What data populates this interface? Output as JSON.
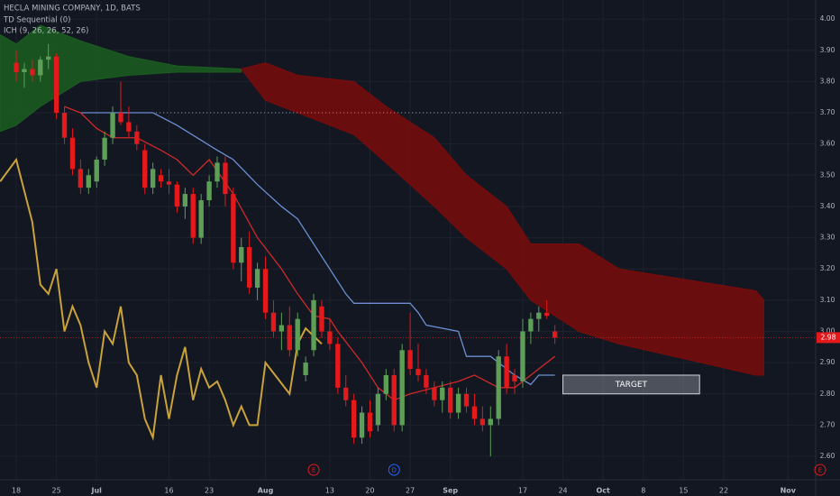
{
  "chart_data": {
    "type": "candlestick",
    "title": "HECLA MINING COMPANY, 1D, BATS",
    "indicators": [
      "TD Sequential (0)",
      "ICH (9, 26, 26, 52, 26)"
    ],
    "xlim": [
      -2.02,
      99.44
    ],
    "ylim": [
      2.525,
      4.061
    ],
    "yticks": [
      {
        "value": 4,
        "label": "4.00"
      },
      {
        "value": 3.9,
        "label": "3.90"
      },
      {
        "value": 3.8,
        "label": "3.80"
      },
      {
        "value": 3.7,
        "label": "3.70"
      },
      {
        "value": 3.6,
        "label": "3.60"
      },
      {
        "value": 3.5,
        "label": "3.50"
      },
      {
        "value": 3.4,
        "label": "3.40"
      },
      {
        "value": 3.3,
        "label": "3.30"
      },
      {
        "value": 3.2,
        "label": "3.20"
      },
      {
        "value": 3.1,
        "label": "3.10"
      },
      {
        "value": 3,
        "label": "3.00"
      },
      {
        "value": 2.9,
        "label": "2.90"
      },
      {
        "value": 2.8,
        "label": "2.80"
      },
      {
        "value": 2.7,
        "label": "2.70"
      },
      {
        "value": 2.6,
        "label": "2.60"
      }
    ],
    "xticks": [
      {
        "value": 0,
        "label": "18"
      },
      {
        "value": 5,
        "label": "25"
      },
      {
        "value": 10,
        "label": "Jul"
      },
      {
        "value": 19,
        "label": "16"
      },
      {
        "value": 24,
        "label": "23"
      },
      {
        "value": 31,
        "label": "Aug"
      },
      {
        "value": 39,
        "label": "13"
      },
      {
        "value": 44,
        "label": "20"
      },
      {
        "value": 49,
        "label": "27"
      },
      {
        "value": 54,
        "label": "Sep"
      },
      {
        "value": 63,
        "label": "17"
      },
      {
        "value": 68,
        "label": "24"
      },
      {
        "value": 73,
        "label": "Oct"
      },
      {
        "value": 78,
        "label": "8"
      },
      {
        "value": 83,
        "label": "15"
      },
      {
        "value": 88,
        "label": "22"
      },
      {
        "value": 96,
        "label": "Nov"
      }
    ],
    "grid": true,
    "up_color": "#5e9f58",
    "down_color": "#e3191c",
    "x": [
      0,
      1,
      2,
      3,
      4,
      5,
      6,
      7,
      8,
      9,
      10,
      11,
      12,
      13,
      14,
      15,
      16,
      17,
      18,
      19,
      20,
      21,
      22,
      23,
      24,
      25,
      26,
      27,
      28,
      29,
      30,
      31,
      32,
      33,
      34,
      35,
      36,
      37,
      38,
      39,
      40,
      41,
      42,
      43,
      44,
      45,
      46,
      47,
      48,
      49,
      50,
      51,
      52,
      53,
      54,
      55,
      56,
      57,
      58,
      59,
      60,
      61,
      62,
      63,
      64,
      65,
      66,
      67
    ],
    "open": [
      3.86,
      3.83,
      3.84,
      3.82,
      3.87,
      3.88,
      3.7,
      3.62,
      3.52,
      3.46,
      3.48,
      3.55,
      3.62,
      3.7,
      3.67,
      3.64,
      3.58,
      3.46,
      3.5,
      3.48,
      3.47,
      3.4,
      3.44,
      3.3,
      3.42,
      3.48,
      3.54,
      3.44,
      3.22,
      3.27,
      3.14,
      3.2,
      3.06,
      3.0,
      3.02,
      2.94,
      2.86,
      2.94,
      3.08,
      3.0,
      2.96,
      2.82,
      2.78,
      2.66,
      2.74,
      2.7,
      2.8,
      2.86,
      2.7,
      2.94,
      2.88,
      2.86,
      2.82,
      2.78,
      2.82,
      2.74,
      2.8,
      2.76,
      2.72,
      2.7,
      2.72,
      2.92,
      2.86,
      2.84,
      3.0,
      3.04,
      3.06,
      3.0
    ],
    "high": [
      3.9,
      3.86,
      3.87,
      3.88,
      3.92,
      3.89,
      3.72,
      3.65,
      3.55,
      3.52,
      3.56,
      3.64,
      3.72,
      3.8,
      3.72,
      3.66,
      3.6,
      3.54,
      3.52,
      3.52,
      3.48,
      3.46,
      3.46,
      3.44,
      3.5,
      3.56,
      3.56,
      3.46,
      3.3,
      3.32,
      3.22,
      3.24,
      3.1,
      3.06,
      3.08,
      3.06,
      2.92,
      3.12,
      3.1,
      3.04,
      2.98,
      2.86,
      2.8,
      2.76,
      2.78,
      2.82,
      2.88,
      2.88,
      2.96,
      3.06,
      2.96,
      2.88,
      2.84,
      2.84,
      2.84,
      2.82,
      2.82,
      2.8,
      2.76,
      2.76,
      2.94,
      2.96,
      2.88,
      3.04,
      3.06,
      3.08,
      3.1,
      3.02
    ],
    "low": [
      3.8,
      3.78,
      3.8,
      3.8,
      3.84,
      3.68,
      3.6,
      3.5,
      3.44,
      3.44,
      3.46,
      3.53,
      3.6,
      3.66,
      3.62,
      3.58,
      3.44,
      3.44,
      3.46,
      3.44,
      3.38,
      3.36,
      3.28,
      3.28,
      3.4,
      3.46,
      3.4,
      3.2,
      3.16,
      3.12,
      3.1,
      3.04,
      2.98,
      2.94,
      2.92,
      2.92,
      2.84,
      2.92,
      2.98,
      2.94,
      2.8,
      2.76,
      2.64,
      2.64,
      2.66,
      2.68,
      2.78,
      2.68,
      2.68,
      2.86,
      2.84,
      2.8,
      2.76,
      2.74,
      2.72,
      2.72,
      2.74,
      2.7,
      2.68,
      2.6,
      2.7,
      2.8,
      2.8,
      2.82,
      2.96,
      3.0,
      3.04,
      2.96
    ],
    "close": [
      3.83,
      3.84,
      3.82,
      3.87,
      3.88,
      3.7,
      3.62,
      3.52,
      3.46,
      3.5,
      3.55,
      3.62,
      3.7,
      3.67,
      3.64,
      3.6,
      3.46,
      3.52,
      3.48,
      3.47,
      3.4,
      3.44,
      3.3,
      3.42,
      3.48,
      3.54,
      3.44,
      3.22,
      3.27,
      3.14,
      3.2,
      3.06,
      3.0,
      3.02,
      2.94,
      3.04,
      2.9,
      3.1,
      3.0,
      2.96,
      2.82,
      2.78,
      2.66,
      2.74,
      2.68,
      2.8,
      2.86,
      2.7,
      2.94,
      2.88,
      2.86,
      2.82,
      2.78,
      2.82,
      2.74,
      2.8,
      2.76,
      2.72,
      2.7,
      2.72,
      2.92,
      2.82,
      2.84,
      3.0,
      3.04,
      3.06,
      3.05,
      2.98
    ],
    "lines": [
      {
        "color": "#6c8fd1",
        "x": [
          8,
          17,
          20,
          25,
          27,
          30,
          33,
          35,
          38,
          41,
          42,
          49,
          50,
          51,
          55,
          56,
          59,
          62,
          64,
          65,
          67
        ],
        "values": [
          3.7,
          3.7,
          3.66,
          3.58,
          3.55,
          3.47,
          3.4,
          3.36,
          3.24,
          3.12,
          3.09,
          3.09,
          3.06,
          3.02,
          3.0,
          2.92,
          2.92,
          2.86,
          2.83,
          2.86,
          2.86
        ]
      },
      {
        "color": "#cf2a2a",
        "x": [
          6,
          8,
          10,
          12,
          15,
          18,
          20,
          22,
          24,
          27,
          30,
          33,
          35,
          37,
          39,
          40,
          43,
          45,
          47,
          49,
          52,
          55,
          57,
          60,
          62,
          64,
          66,
          67
        ],
        "values": [
          3.72,
          3.7,
          3.65,
          3.62,
          3.62,
          3.58,
          3.55,
          3.5,
          3.55,
          3.44,
          3.3,
          3.2,
          3.12,
          3.05,
          3.04,
          3.0,
          2.9,
          2.82,
          2.78,
          2.8,
          2.82,
          2.84,
          2.86,
          2.82,
          2.82,
          2.86,
          2.9,
          2.92
        ]
      },
      {
        "color": "#c9a23a",
        "x": [
          -2,
          0,
          2,
          3,
          4,
          5,
          6,
          7,
          8,
          9,
          10,
          11,
          12,
          13,
          14,
          15,
          16,
          17,
          18,
          19,
          20,
          21,
          22,
          23,
          24,
          25,
          26,
          27,
          28,
          29,
          30,
          31,
          34,
          35,
          36,
          38
        ],
        "values": [
          3.48,
          3.55,
          3.35,
          3.15,
          3.12,
          3.2,
          3.0,
          3.08,
          3.02,
          2.9,
          2.82,
          3.0,
          2.96,
          3.08,
          2.9,
          2.86,
          2.72,
          2.66,
          2.86,
          2.72,
          2.86,
          2.95,
          2.78,
          2.88,
          2.82,
          2.84,
          2.78,
          2.7,
          2.76,
          2.7,
          2.7,
          2.9,
          2.8,
          2.96,
          3.01,
          2.96
        ]
      }
    ],
    "cloud": [
      {
        "color": "#1b5e20",
        "x": [
          -2,
          0,
          3,
          8,
          14,
          20,
          28
        ],
        "upper": [
          3.95,
          3.92,
          3.98,
          3.93,
          3.88,
          3.85,
          3.84
        ],
        "lower": [
          3.64,
          3.66,
          3.72,
          3.8,
          3.82,
          3.83,
          3.83
        ]
      },
      {
        "color": "#7a0c0c",
        "x": [
          28,
          31,
          35,
          42,
          46,
          52,
          56,
          61,
          64,
          70,
          75,
          92,
          93
        ],
        "upper": [
          3.84,
          3.86,
          3.82,
          3.8,
          3.72,
          3.62,
          3.5,
          3.4,
          3.28,
          3.28,
          3.2,
          3.13,
          3.1
        ],
        "lower": [
          3.84,
          3.74,
          3.7,
          3.63,
          3.54,
          3.4,
          3.3,
          3.2,
          3.1,
          3.0,
          2.96,
          2.86,
          2.86
        ]
      }
    ],
    "dotted_level": {
      "value": 3.7,
      "x": [
        12,
        68
      ]
    },
    "price_line": {
      "value": 2.98,
      "color": "#e3191c"
    },
    "target": {
      "label": "TARGET",
      "x": [
        68,
        85
      ],
      "y": [
        2.8,
        2.86
      ]
    },
    "events": [
      {
        "x": 37,
        "label": "E",
        "color": "#e3191c"
      },
      {
        "x": 47,
        "label": "D",
        "color": "#2962ff"
      },
      {
        "x": 100,
        "label": "E",
        "color": "#e3191c"
      }
    ]
  }
}
